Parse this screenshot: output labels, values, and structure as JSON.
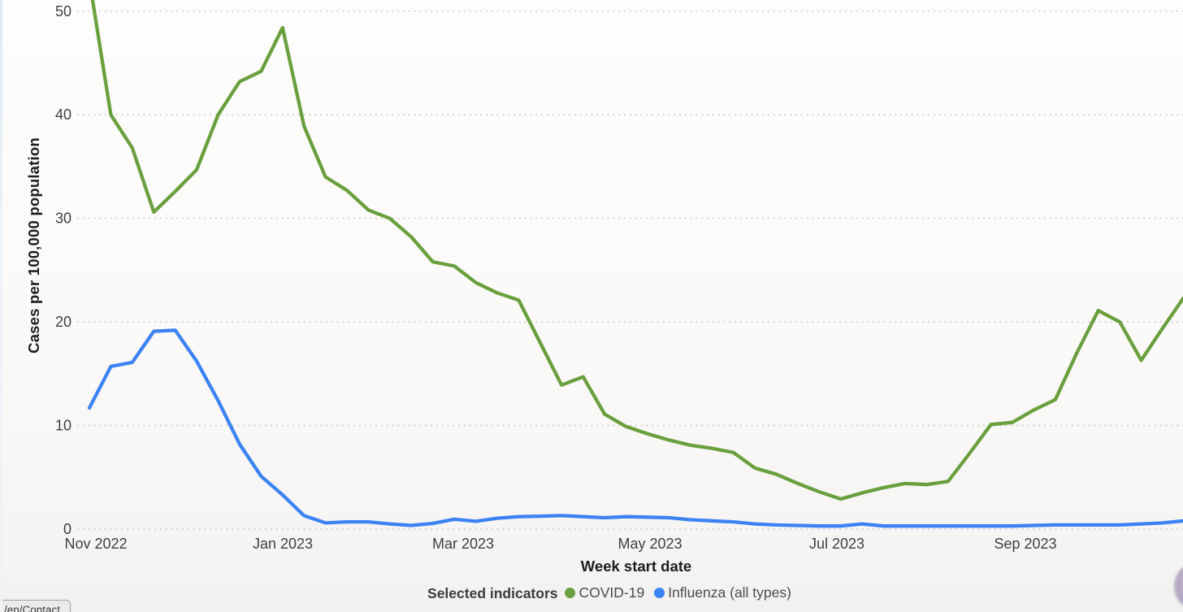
{
  "page": {
    "link_preview": "/en/Contact"
  },
  "chart_data": {
    "type": "line",
    "title": "",
    "xlabel": "Week start date",
    "ylabel": "Cases per 100,000 population",
    "x_tick_labels": [
      "Nov 2022",
      "Jan 2023",
      "Mar 2023",
      "May 2023",
      "Jul 2023",
      "Sep 2023"
    ],
    "y_ticks": [
      0,
      10,
      20,
      30,
      40,
      50
    ],
    "ylim": [
      0,
      51
    ],
    "grid": "horizontal-dotted",
    "grid_color": "#cdcdcd",
    "legend_position": "bottom-center",
    "legend_title": "Selected indicators",
    "x_note": "weekly data points from Nov 2022 to late Oct 2023, first COVID-19 point cut off above top axis (~53)",
    "series": [
      {
        "name": "COVID-19",
        "color": "#6a9f3e",
        "values": [
          53,
          40,
          36.8,
          30.6,
          32.6,
          34.7,
          40,
          43.2,
          44.2,
          48.4,
          38.9,
          34,
          32.7,
          30.8,
          30,
          28.2,
          25.8,
          25.4,
          23.8,
          22.8,
          22.1,
          18,
          13.9,
          14.7,
          11.1,
          9.9,
          9.2,
          8.6,
          8.1,
          7.8,
          7.4,
          5.9,
          5.3,
          4.4,
          3.6,
          2.9,
          3.5,
          4,
          4.4,
          4.3,
          4.6,
          7.3,
          10.1,
          10.3,
          11.5,
          12.5,
          17,
          21.1,
          20,
          16.3,
          19.4,
          22.4
        ]
      },
      {
        "name": "Influenza (all types)",
        "color": "#3c83f2",
        "values": [
          11.7,
          15.7,
          16.1,
          19.1,
          19.2,
          16.2,
          12.4,
          8.2,
          5.1,
          3.3,
          1.3,
          0.6,
          0.7,
          0.7,
          0.5,
          0.35,
          0.55,
          0.95,
          0.75,
          1.05,
          1.2,
          1.25,
          1.3,
          1.2,
          1.1,
          1.2,
          1.15,
          1.1,
          0.9,
          0.8,
          0.7,
          0.5,
          0.4,
          0.35,
          0.3,
          0.3,
          0.5,
          0.3,
          0.3,
          0.3,
          0.3,
          0.3,
          0.3,
          0.3,
          0.35,
          0.4,
          0.4,
          0.4,
          0.4,
          0.5,
          0.6,
          0.8
        ]
      }
    ]
  },
  "floating_button": {
    "color": "#a99cba"
  }
}
